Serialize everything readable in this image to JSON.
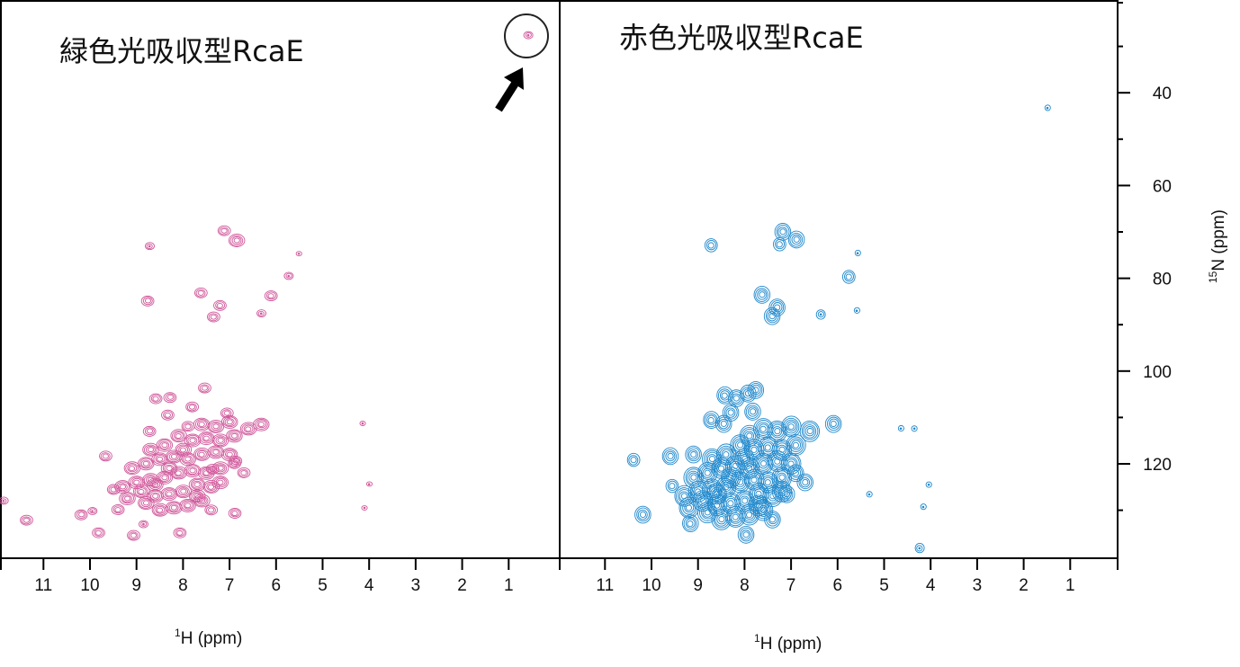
{
  "chart_data": [
    {
      "type": "scatter",
      "subtype": "2D NMR contour (1H-15N HSQC)",
      "title": "緑色光吸収型RcaE",
      "xlabel_sup": "1",
      "xlabel": "H (ppm)",
      "ylabel_sup": "15",
      "ylabel": "N (ppm)",
      "xlim": [
        12,
        0
      ],
      "ylim": [
        140,
        20
      ],
      "x_ticks": [
        "11",
        "10",
        "9",
        "8",
        "7",
        "6",
        "5",
        "4",
        "3",
        "2",
        "1"
      ],
      "y_ticks": [
        "40",
        "60",
        "80",
        "100",
        "120"
      ],
      "color": "#d0579a",
      "annotation": "circled peak with arrow",
      "annotated_peak": [
        0.58,
        27.6
      ],
      "peaks": [
        [
          0.58,
          27.6,
          2
        ],
        [
          8.72,
          73.1,
          2
        ],
        [
          7.12,
          69.8,
          3
        ],
        [
          6.85,
          71.9,
          4
        ],
        [
          5.51,
          74.7,
          1
        ],
        [
          5.73,
          79.5,
          2
        ],
        [
          6.11,
          83.8,
          3
        ],
        [
          7.62,
          83.2,
          3
        ],
        [
          8.76,
          84.9,
          3
        ],
        [
          7.21,
          85.9,
          3
        ],
        [
          7.35,
          88.4,
          3
        ],
        [
          6.32,
          87.6,
          2
        ],
        [
          7.54,
          103.7,
          3
        ],
        [
          8.28,
          105.7,
          3
        ],
        [
          8.59,
          106,
          3
        ],
        [
          7.81,
          107.8,
          3
        ],
        [
          8.33,
          109.5,
          3
        ],
        [
          7.06,
          109.1,
          3
        ],
        [
          8.72,
          113,
          3
        ],
        [
          6.32,
          111.5,
          4
        ],
        [
          9.67,
          118.4,
          3
        ],
        [
          11.86,
          128,
          2
        ],
        [
          11.37,
          132.2,
          3
        ],
        [
          10.19,
          131,
          3
        ],
        [
          9.82,
          134.9,
          3
        ],
        [
          9.07,
          135.5,
          3
        ],
        [
          8.07,
          134.9,
          3
        ],
        [
          7.37,
          121.2,
          3
        ],
        [
          6.87,
          119.4,
          3
        ],
        [
          6.89,
          130.7,
          3
        ],
        [
          9.5,
          125.6,
          3
        ],
        [
          9.4,
          129.9,
          3
        ],
        [
          8.85,
          133,
          2
        ],
        [
          9.95,
          130.2,
          2
        ],
        [
          4.14,
          111.3,
          1
        ],
        [
          4.0,
          124.4,
          1
        ],
        [
          4.1,
          129.5,
          1
        ],
        [
          7.0,
          111,
          4
        ],
        [
          7.3,
          112,
          4
        ],
        [
          7.6,
          111.5,
          4
        ],
        [
          7.9,
          112,
          3
        ],
        [
          6.6,
          112.5,
          4
        ],
        [
          6.9,
          114,
          4
        ],
        [
          7.2,
          115,
          4
        ],
        [
          7.5,
          114.5,
          4
        ],
        [
          7.8,
          115,
          4
        ],
        [
          8.1,
          114,
          4
        ],
        [
          8.4,
          116,
          4
        ],
        [
          8.7,
          117,
          4
        ],
        [
          7.0,
          118,
          4
        ],
        [
          7.3,
          117.5,
          4
        ],
        [
          7.6,
          118,
          4
        ],
        [
          7.9,
          119,
          4
        ],
        [
          8.2,
          118.5,
          4
        ],
        [
          8.5,
          119,
          4
        ],
        [
          8.8,
          120,
          4
        ],
        [
          9.1,
          121,
          4
        ],
        [
          6.9,
          120,
          3
        ],
        [
          7.2,
          121,
          4
        ],
        [
          7.5,
          122,
          4
        ],
        [
          7.8,
          121.5,
          4
        ],
        [
          8.1,
          122,
          4
        ],
        [
          8.4,
          123,
          4
        ],
        [
          8.7,
          123.5,
          4
        ],
        [
          9.0,
          124,
          4
        ],
        [
          9.3,
          125,
          4
        ],
        [
          7.4,
          125,
          4
        ],
        [
          7.7,
          124.5,
          4
        ],
        [
          8.0,
          126,
          4
        ],
        [
          8.3,
          126.5,
          4
        ],
        [
          8.6,
          127,
          4
        ],
        [
          8.9,
          126,
          4
        ],
        [
          9.2,
          127.5,
          4
        ],
        [
          7.6,
          128,
          4
        ],
        [
          7.9,
          129,
          4
        ],
        [
          8.2,
          129.5,
          4
        ],
        [
          8.5,
          130,
          4
        ],
        [
          7.4,
          130,
          3
        ],
        [
          8.8,
          128.5,
          4
        ],
        [
          7.2,
          124,
          4
        ],
        [
          6.7,
          122,
          3
        ],
        [
          8.0,
          117,
          4
        ],
        [
          8.3,
          121,
          4
        ],
        [
          7.7,
          127,
          4
        ],
        [
          8.6,
          124.5,
          4
        ]
      ]
    },
    {
      "type": "scatter",
      "subtype": "2D NMR contour (1H-15N HSQC)",
      "title": "赤色光吸収型RcaE",
      "xlabel_sup": "1",
      "xlabel": "H (ppm)",
      "xlim": [
        12,
        0
      ],
      "ylim": [
        140,
        20
      ],
      "x_ticks": [
        "11",
        "10",
        "9",
        "8",
        "7",
        "6",
        "5",
        "4",
        "3",
        "2",
        "1"
      ],
      "color": "#1f88cc",
      "peaks": [
        [
          1.49,
          43.3,
          1
        ],
        [
          8.72,
          72.9,
          3
        ],
        [
          7.18,
          70,
          4
        ],
        [
          6.89,
          71.7,
          4
        ],
        [
          7.25,
          72.7,
          3
        ],
        [
          5.57,
          74.6,
          1
        ],
        [
          5.76,
          79.7,
          3
        ],
        [
          6.36,
          87.8,
          2
        ],
        [
          7.63,
          83.6,
          4
        ],
        [
          7.3,
          86.3,
          4
        ],
        [
          7.41,
          88.2,
          4
        ],
        [
          8.43,
          105.3,
          4
        ],
        [
          8.18,
          105.9,
          4
        ],
        [
          7.93,
          104.9,
          4
        ],
        [
          7.76,
          104.1,
          4
        ],
        [
          8.3,
          109,
          4
        ],
        [
          8.72,
          110.6,
          4
        ],
        [
          8.45,
          111.4,
          4
        ],
        [
          7.83,
          108.8,
          4
        ],
        [
          6.09,
          111.4,
          4
        ],
        [
          4.64,
          112.4,
          1
        ],
        [
          4.35,
          112.4,
          1
        ],
        [
          10.39,
          119.2,
          3
        ],
        [
          9.6,
          118.4,
          4
        ],
        [
          9.56,
          124.8,
          3
        ],
        [
          10.19,
          131,
          4
        ],
        [
          9.17,
          132.9,
          4
        ],
        [
          7.97,
          135.3,
          4
        ],
        [
          7.1,
          126.6,
          4
        ],
        [
          4.04,
          124.5,
          1
        ],
        [
          4.16,
          129.3,
          1
        ],
        [
          4.24,
          138.2,
          2
        ],
        [
          5.32,
          126.6,
          1
        ],
        [
          5.59,
          87,
          1
        ],
        [
          7.0,
          112,
          5
        ],
        [
          7.3,
          113,
          5
        ],
        [
          7.6,
          112.5,
          5
        ],
        [
          7.9,
          114,
          5
        ],
        [
          6.6,
          113,
          5
        ],
        [
          6.9,
          116,
          5
        ],
        [
          7.2,
          117,
          5
        ],
        [
          7.5,
          116.5,
          5
        ],
        [
          7.8,
          117,
          5
        ],
        [
          8.1,
          116,
          5
        ],
        [
          8.4,
          118,
          5
        ],
        [
          8.7,
          119,
          5
        ],
        [
          7.0,
          120,
          5
        ],
        [
          7.3,
          119.5,
          5
        ],
        [
          7.6,
          120,
          5
        ],
        [
          7.9,
          121,
          5
        ],
        [
          8.2,
          120.5,
          5
        ],
        [
          8.5,
          121,
          5
        ],
        [
          8.8,
          122,
          5
        ],
        [
          9.1,
          123,
          5
        ],
        [
          6.9,
          122,
          4
        ],
        [
          7.2,
          123,
          5
        ],
        [
          7.5,
          124,
          5
        ],
        [
          7.8,
          123.5,
          5
        ],
        [
          8.1,
          124,
          5
        ],
        [
          8.4,
          125,
          5
        ],
        [
          8.7,
          125.5,
          5
        ],
        [
          9.0,
          126,
          5
        ],
        [
          9.3,
          127,
          5
        ],
        [
          7.4,
          127,
          5
        ],
        [
          7.7,
          126.5,
          5
        ],
        [
          8.0,
          128,
          5
        ],
        [
          8.3,
          128.5,
          5
        ],
        [
          8.6,
          129,
          5
        ],
        [
          8.9,
          128,
          5
        ],
        [
          9.2,
          129.5,
          5
        ],
        [
          7.6,
          130,
          5
        ],
        [
          7.9,
          131,
          5
        ],
        [
          8.2,
          131.5,
          5
        ],
        [
          8.5,
          132,
          5
        ],
        [
          7.4,
          132,
          4
        ],
        [
          8.8,
          130.5,
          5
        ],
        [
          7.2,
          126,
          5
        ],
        [
          6.7,
          124,
          4
        ],
        [
          8.0,
          119,
          5
        ],
        [
          8.3,
          123,
          5
        ],
        [
          7.7,
          129,
          5
        ],
        [
          8.6,
          126.5,
          5
        ],
        [
          9.1,
          118,
          4
        ]
      ]
    }
  ]
}
